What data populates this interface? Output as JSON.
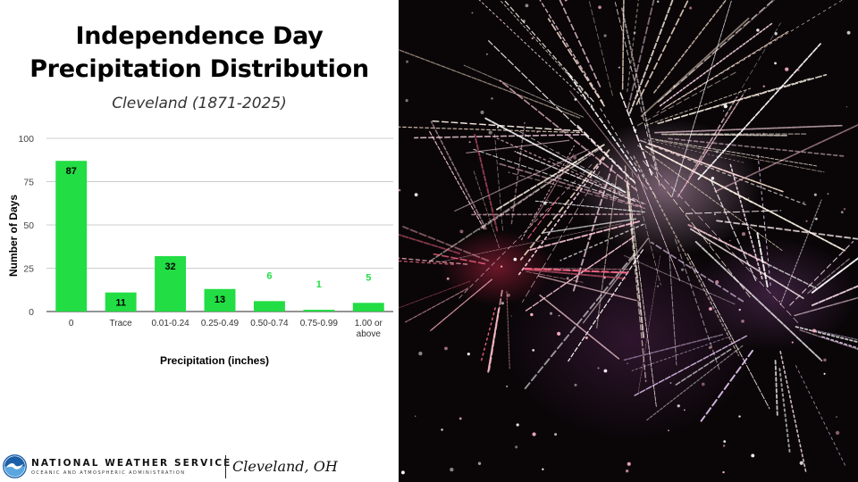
{
  "chart_data": {
    "type": "bar",
    "title": [
      "Independence Day",
      "Precipitation Distribution"
    ],
    "subtitle": "Cleveland (1871-2025)",
    "xlabel": "Precipitation (inches)",
    "ylabel": "Number of Days",
    "ylim": [
      0,
      100
    ],
    "yticks": [
      0,
      25,
      50,
      75,
      100
    ],
    "grid": true,
    "categories": [
      [
        "0"
      ],
      [
        "Trace"
      ],
      [
        "0.01-0.24"
      ],
      [
        "0.25-0.49"
      ],
      [
        "0.50-0.74"
      ],
      [
        "0.75-0.99"
      ],
      [
        "1.00 or",
        "above"
      ]
    ],
    "values": [
      87,
      11,
      32,
      13,
      6,
      1,
      5
    ],
    "data_labels": [
      "87",
      "11",
      "32",
      "13",
      "6",
      "1",
      "5"
    ],
    "bar_color": "#22dd44",
    "label_colors": {
      "inside": "#000000",
      "outside": "#22dd44"
    }
  },
  "footer": {
    "agency": "NATIONAL WEATHER SERVICE",
    "subagency": "OCEANIC AND ATMOSPHERIC ADMINISTRATION",
    "office": "Cleveland, OH"
  },
  "photo": {
    "subject": "fireworks-photo"
  },
  "colors": {
    "noaa_blue": "#1b5fa8",
    "noaa_light": "#5aa6e0"
  }
}
